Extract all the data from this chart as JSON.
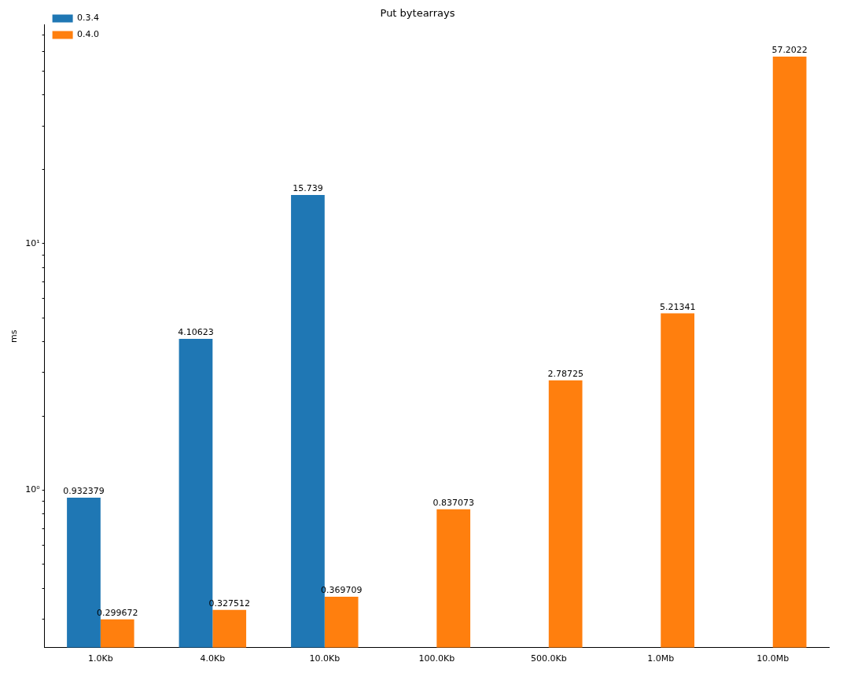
{
  "chart_data": {
    "type": "bar",
    "title": "Put bytearrays",
    "ylabel": "ms",
    "categories": [
      "1.0Kb",
      "4.0Kb",
      "10.0Kb",
      "100.0Kb",
      "500.0Kb",
      "1.0Mb",
      "10.0Mb"
    ],
    "series": [
      {
        "name": "0.3.4",
        "color": "#1f77b4",
        "values": [
          0.932379,
          4.10623,
          15.739,
          null,
          null,
          null,
          null
        ]
      },
      {
        "name": "0.4.0",
        "color": "#ff7f0e",
        "values": [
          0.299672,
          0.327512,
          0.369709,
          0.837073,
          2.78725,
          5.21341,
          57.2022
        ]
      }
    ],
    "log": "y",
    "ylim": [
      0.23,
      77
    ],
    "yticks": [
      {
        "value": 0.3,
        "label": null
      },
      {
        "value": 0.4,
        "label": null
      },
      {
        "value": 0.5,
        "label": null
      },
      {
        "value": 0.6,
        "label": null
      },
      {
        "value": 0.7,
        "label": null
      },
      {
        "value": 0.8,
        "label": null
      },
      {
        "value": 0.9,
        "label": null
      },
      {
        "value": 1,
        "label": "10⁰"
      },
      {
        "value": 2,
        "label": null
      },
      {
        "value": 3,
        "label": null
      },
      {
        "value": 4,
        "label": null
      },
      {
        "value": 5,
        "label": null
      },
      {
        "value": 6,
        "label": null
      },
      {
        "value": 7,
        "label": null
      },
      {
        "value": 8,
        "label": null
      },
      {
        "value": 9,
        "label": null
      },
      {
        "value": 10,
        "label": "10¹"
      },
      {
        "value": 20,
        "label": null
      },
      {
        "value": 30,
        "label": null
      },
      {
        "value": 40,
        "label": null
      },
      {
        "value": 50,
        "label": null
      },
      {
        "value": 60,
        "label": null
      },
      {
        "value": 70,
        "label": null
      }
    ],
    "grid": false,
    "legend": "top left",
    "data_labels": true
  }
}
